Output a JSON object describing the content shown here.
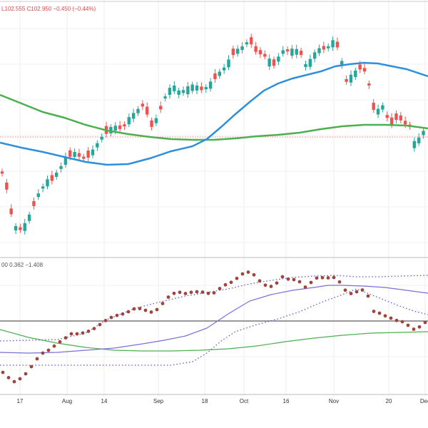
{
  "chart_data": [
    {
      "type": "candlestick",
      "title": "",
      "ohlc_text": "L102.555  C102.950  −0.450 (−0.44%)",
      "colors": {
        "up": "#26a69a",
        "down": "#ef5350",
        "ma_fast": "#2f8fdc",
        "ma_slow": "#4caf50",
        "last_price_line": "#ef5350"
      },
      "x_ticks": [
        "17",
        "Aug",
        "14",
        "Sep",
        "18",
        "Oct",
        "16",
        "Nov",
        "20",
        "Dec"
      ],
      "series": [
        {
          "name": "",
          "type": "moving-average",
          "color": "#2f8fdc"
        },
        {
          "name": "",
          "type": "moving-average",
          "color": "#4caf50"
        }
      ]
    },
    {
      "type": "line",
      "title": "",
      "label_text": "00  0.362  −1.408",
      "grid": true,
      "colors": {
        "dots": "#a0453d",
        "signal": "#7a6fd6",
        "slow": "#4caf50",
        "dotted": "#5a5ad6"
      },
      "reference_line": true
    }
  ]
}
